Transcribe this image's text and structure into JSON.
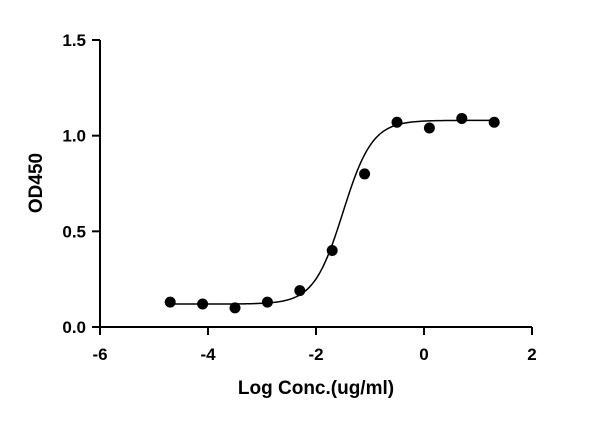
{
  "chart_data": {
    "type": "scatter",
    "xlabel": "Log Conc.(ug/ml)",
    "ylabel": "OD450",
    "xlim": [
      -6,
      2
    ],
    "ylim": [
      0,
      1.5
    ],
    "x_ticks": [
      -6,
      -4,
      -2,
      0,
      2
    ],
    "x_tick_labels": [
      "-6",
      "-4",
      "-2",
      "0",
      "2"
    ],
    "y_ticks": [
      0,
      0.5,
      1.0,
      1.5
    ],
    "y_tick_labels": [
      "0.0",
      "0.5",
      "1.0",
      "1.5"
    ],
    "grid": false,
    "points": {
      "x": [
        -4.7,
        -4.1,
        -3.5,
        -2.9,
        -2.3,
        -1.7,
        -1.1,
        -0.5,
        0.1,
        0.7,
        1.3
      ],
      "y": [
        0.13,
        0.12,
        0.1,
        0.13,
        0.19,
        0.4,
        0.8,
        1.07,
        1.04,
        1.09,
        1.07
      ]
    },
    "fit_curve": {
      "model": "four-parameter logistic",
      "bottom": 0.12,
      "top": 1.08,
      "log_ec50": -1.5,
      "hill_slope": 1.6
    },
    "colors": {
      "marker": "#000000",
      "line": "#000000",
      "axis": "#000000"
    }
  }
}
